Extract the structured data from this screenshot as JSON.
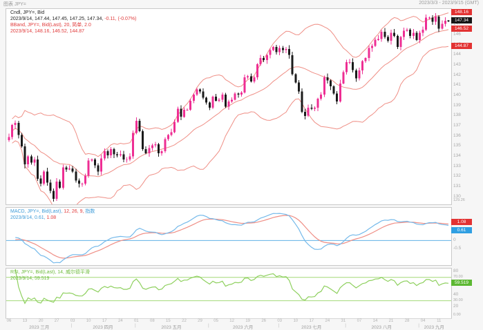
{
  "window": {
    "title_left": "图表 JPY=",
    "title_right": "2023/3/3 - 2023/9/15 (GMT)"
  },
  "colors": {
    "candle_up": "#ee2e93",
    "candle_down": "#1a1a1a",
    "bollinger": "#ef8e85",
    "macd_line": "#74b9ea",
    "macd_signal": "#ef8e85",
    "macd_zero": "#5fb0e6",
    "rsi_line": "#8ed05e",
    "rsi_band": "#a2d977",
    "box_red": "#e23232",
    "box_black": "#161616",
    "box_blue": "#2f9fe2",
    "box_green": "#5cb832",
    "axis_text": "#a8a8a8"
  },
  "main": {
    "legend": {
      "line1": "Cndl, JPY=, Bid",
      "line2_black": "2023/9/14, 147.44, 147.45, 147.25, 147.34, ",
      "line2_red": "-0.11, (-0.07%)",
      "line3": "BBand, JPY=, Bid(Last), 20, 简单, 2.0",
      "line4": "2023/9/14, 148.16, 146.52, 144.87"
    },
    "axis": {
      "min": 129.26,
      "max": 148.55,
      "step": 1,
      "bottom_label": "129.26"
    },
    "price_boxes": [
      {
        "label": "148.16",
        "value": 148.16,
        "color": "box_red",
        "name": "bollinger-upper-price-box"
      },
      {
        "label": "147.34",
        "value": 147.34,
        "color": "box_black",
        "name": "last-price-box"
      },
      {
        "label": "146.52",
        "value": 146.52,
        "color": "box_red",
        "name": "bollinger-middle-price-box"
      },
      {
        "label": "144.87",
        "value": 144.87,
        "color": "box_red",
        "name": "bollinger-lower-price-box"
      }
    ]
  },
  "macd": {
    "legend": {
      "line1_a": "MACD, JPY=, Bid(Last), ",
      "line1_b": "12, 26, 9, ",
      "line1_c": "指数",
      "line2_blue": "2023/9/14, 0.61, ",
      "line2_red": "1.08"
    },
    "axis": {
      "min": -1.5,
      "max": 2.0,
      "ticks": [
        {
          "label": "0.5",
          "value": 0.5
        },
        {
          "label": "0",
          "value": 0
        },
        {
          "label": "-0.5",
          "value": -0.5
        }
      ]
    },
    "boxes": [
      {
        "label": "1.08",
        "value": 1.08,
        "color": "box_red",
        "name": "macd-signal-value-box"
      },
      {
        "label": "0.61",
        "value": 0.61,
        "color": "box_blue",
        "name": "macd-value-box"
      }
    ]
  },
  "rsi": {
    "legend": {
      "line1": "RSI, JPY=, Bid(Last), 14, 威尔德平滑",
      "line2": "2023/9/14, 59.519"
    },
    "axis": {
      "min": 0,
      "max": 85,
      "ticks": [
        {
          "label": "80",
          "value": 80
        },
        {
          "label": "60",
          "value": 60
        },
        {
          "label": "40",
          "value": 40
        },
        {
          "label": "20",
          "value": 20
        }
      ],
      "band_upper": {
        "label": "70.00",
        "value": 70
      },
      "band_lower": {
        "label": "30.00",
        "value": 30
      },
      "bottom_label": "0.00"
    },
    "box": {
      "label": "59.519",
      "value": 59.519,
      "color": "box_green",
      "name": "rsi-value-box"
    }
  },
  "time_axis": {
    "day_ticks": [
      {
        "i": 0,
        "d": "06"
      },
      {
        "i": 5,
        "d": "13"
      },
      {
        "i": 10,
        "d": "20"
      },
      {
        "i": 15,
        "d": "27"
      },
      {
        "i": 20,
        "d": "03"
      },
      {
        "i": 25,
        "d": "10"
      },
      {
        "i": 30,
        "d": "17"
      },
      {
        "i": 35,
        "d": "24"
      },
      {
        "i": 40,
        "d": "01"
      },
      {
        "i": 45,
        "d": "08"
      },
      {
        "i": 50,
        "d": "15"
      },
      {
        "i": 55,
        "d": "22"
      },
      {
        "i": 60,
        "d": "29"
      },
      {
        "i": 65,
        "d": "05"
      },
      {
        "i": 70,
        "d": "12"
      },
      {
        "i": 75,
        "d": "19"
      },
      {
        "i": 80,
        "d": "26"
      },
      {
        "i": 85,
        "d": "03"
      },
      {
        "i": 90,
        "d": "10"
      },
      {
        "i": 95,
        "d": "17"
      },
      {
        "i": 100,
        "d": "24"
      },
      {
        "i": 105,
        "d": "31"
      },
      {
        "i": 110,
        "d": "07"
      },
      {
        "i": 115,
        "d": "14"
      },
      {
        "i": 120,
        "d": "21"
      },
      {
        "i": 125,
        "d": "28"
      },
      {
        "i": 130,
        "d": "04"
      },
      {
        "i": 135,
        "d": "11"
      }
    ],
    "months": [
      {
        "label": "2023 三月",
        "start": 0,
        "end": 19
      },
      {
        "label": "2023 四月",
        "start": 20,
        "end": 39
      },
      {
        "label": "2023 五月",
        "start": 40,
        "end": 62
      },
      {
        "label": "2023 六月",
        "start": 63,
        "end": 84
      },
      {
        "label": "2023 七月",
        "start": 85,
        "end": 105
      },
      {
        "label": "2023 八月",
        "start": 106,
        "end": 128
      },
      {
        "label": "2023 九月",
        "start": 129,
        "end": 138
      }
    ]
  },
  "chart_data": {
    "type": "candlestick",
    "symbol": "JPY=",
    "interval": "daily",
    "title": "Cndl, JPY=, Bid",
    "date_range": "2023/3/6 - 2023/9/14",
    "ylim": [
      129.26,
      148.55
    ],
    "closes": [
      135.9,
      137.1,
      137.3,
      136.1,
      135.0,
      133.2,
      134.0,
      133.4,
      133.7,
      131.8,
      131.3,
      132.5,
      131.4,
      130.6,
      129.8,
      131.5,
      130.9,
      132.9,
      132.7,
      132.8,
      132.5,
      131.6,
      131.3,
      131.3,
      132.1,
      133.6,
      133.7,
      133.1,
      132.5,
      133.8,
      134.5,
      134.1,
      134.7,
      134.2,
      134.1,
      134.2,
      133.7,
      133.7,
      134.0,
      136.3,
      137.5,
      136.5,
      134.7,
      134.3,
      134.8,
      135.1,
      135.2,
      134.3,
      134.5,
      135.7,
      136.1,
      136.4,
      137.4,
      138.7,
      137.9,
      138.6,
      138.6,
      139.5,
      140.1,
      140.6,
      140.4,
      139.8,
      139.3,
      138.8,
      139.9,
      139.5,
      139.6,
      140.1,
      138.9,
      139.4,
      139.6,
      140.2,
      140.1,
      140.3,
      141.8,
      141.9,
      141.4,
      141.8,
      143.1,
      143.7,
      143.5,
      144.0,
      144.5,
      144.8,
      144.3,
      144.7,
      144.5,
      144.6,
      144.0,
      142.1,
      141.3,
      140.4,
      138.4,
      138.0,
      138.8,
      138.7,
      138.8,
      139.7,
      140.1,
      141.8,
      141.5,
      140.9,
      140.2,
      139.4,
      141.2,
      142.3,
      143.3,
      143.3,
      142.5,
      141.7,
      142.5,
      143.4,
      143.7,
      144.7,
      144.9,
      145.5,
      145.6,
      146.3,
      145.8,
      145.4,
      146.2,
      145.9,
      144.8,
      145.8,
      146.4,
      146.5,
      145.9,
      146.2,
      145.5,
      146.2,
      146.5,
      147.7,
      147.7,
      147.3,
      147.8,
      146.6,
      147.1,
      147.4,
      147.34
    ],
    "last_ohlc": {
      "date": "2023/9/14",
      "open": 147.44,
      "high": 147.45,
      "low": 147.25,
      "close": 147.34,
      "change": -0.11,
      "change_pct": "-0.07%"
    },
    "indicators": {
      "bollinger": {
        "period": 20,
        "type": "简单",
        "mult": 2.0,
        "latest": {
          "upper": 148.16,
          "middle": 146.52,
          "lower": 144.87
        }
      },
      "macd": {
        "fast": 12,
        "slow": 26,
        "signal": 9,
        "type": "指数",
        "latest": {
          "macd": 0.61,
          "signal": 1.08
        }
      },
      "rsi": {
        "period": 14,
        "type": "威尔德平滑",
        "latest": 59.519,
        "bands": [
          70,
          30
        ]
      }
    }
  }
}
